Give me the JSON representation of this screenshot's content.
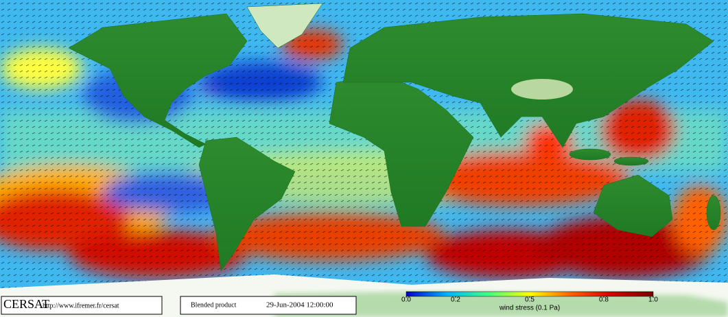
{
  "footer": {
    "logo": "CERSAT",
    "url": "http://www.ifremer.fr/cersat",
    "product": "Blended product",
    "date": "29-Jun-2004 12:00:00"
  },
  "colorbar": {
    "label": "wind stress (0.1 Pa)",
    "lim": [
      0,
      1
    ],
    "ticks": [
      {
        "value": 0,
        "label": "0.0"
      },
      0.2,
      0.5,
      0.8,
      {
        "value": 1,
        "label": "1.0"
      }
    ],
    "colors": [
      "#0000c8",
      "#00b4ff",
      "#40ff80",
      "#ffff00",
      "#ff6000",
      "#d00000",
      "#780000"
    ]
  }
}
